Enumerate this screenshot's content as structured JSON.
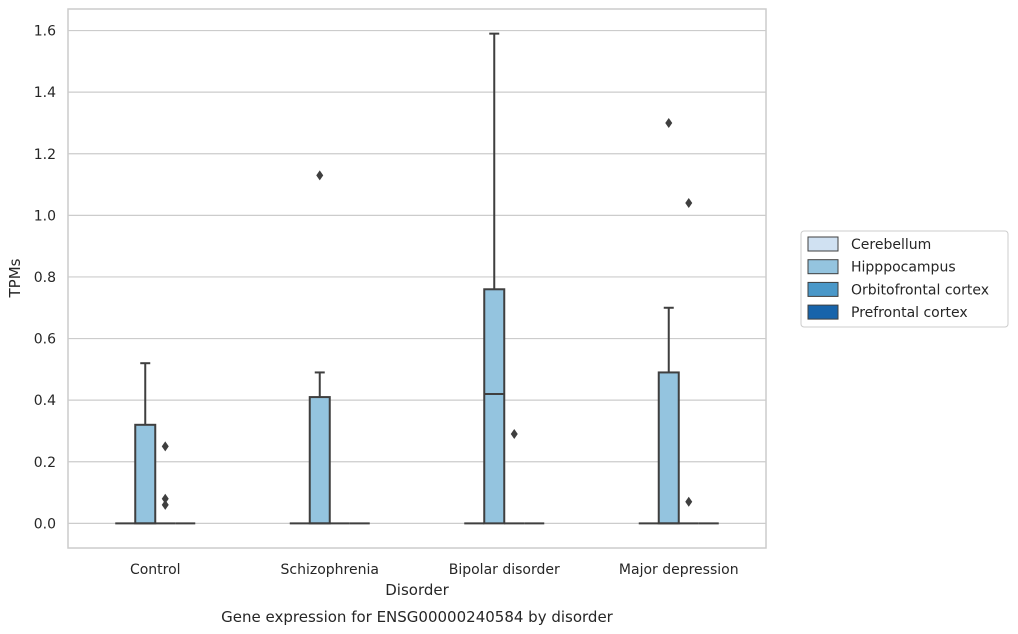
{
  "chart_data": {
    "type": "box",
    "title": "Gene expression for ENSG00000240584 by disorder",
    "xlabel": "Disorder",
    "ylabel": "TPMs",
    "ylim": [
      -0.08,
      1.67
    ],
    "yticks": [
      0.0,
      0.2,
      0.4,
      0.6,
      0.8,
      1.0,
      1.2,
      1.4,
      1.6
    ],
    "ytick_labels": [
      "0.0",
      "0.2",
      "0.4",
      "0.6",
      "0.8",
      "1.0",
      "1.2",
      "1.4",
      "1.6"
    ],
    "categories": [
      "Control",
      "Schizophrenia",
      "Bipolar disorder",
      "Major depression"
    ],
    "grid": "horizontal",
    "legend_position": "right",
    "series": [
      {
        "name": "Cerebellum",
        "color": "#d0e1f2",
        "boxes": [
          {
            "q1": 0,
            "median": 0,
            "q3": 0,
            "whisker_low": 0,
            "whisker_high": 0,
            "outliers": []
          },
          {
            "q1": 0,
            "median": 0,
            "q3": 0,
            "whisker_low": 0,
            "whisker_high": 0,
            "outliers": []
          },
          {
            "q1": 0,
            "median": 0,
            "q3": 0,
            "whisker_low": 0,
            "whisker_high": 0,
            "outliers": []
          },
          {
            "q1": 0,
            "median": 0,
            "q3": 0,
            "whisker_low": 0,
            "whisker_high": 0,
            "outliers": []
          }
        ]
      },
      {
        "name": "Hipppocampus",
        "color": "#94c4df",
        "boxes": [
          {
            "q1": 0,
            "median": 0,
            "q3": 0.32,
            "whisker_low": 0,
            "whisker_high": 0.52,
            "outliers": []
          },
          {
            "q1": 0,
            "median": 0,
            "q3": 0.41,
            "whisker_low": 0,
            "whisker_high": 0.49,
            "outliers": [
              1.13
            ]
          },
          {
            "q1": 0,
            "median": 0.42,
            "q3": 0.76,
            "whisker_low": 0,
            "whisker_high": 1.59,
            "outliers": []
          },
          {
            "q1": 0,
            "median": 0,
            "q3": 0.49,
            "whisker_low": 0,
            "whisker_high": 0.7,
            "outliers": [
              1.3
            ]
          }
        ]
      },
      {
        "name": "Orbitofrontal cortex",
        "color": "#4a98c9",
        "boxes": [
          {
            "q1": 0,
            "median": 0,
            "q3": 0,
            "whisker_low": 0,
            "whisker_high": 0,
            "outliers": [
              0.25,
              0.08,
              0.06
            ]
          },
          {
            "q1": 0,
            "median": 0,
            "q3": 0,
            "whisker_low": 0,
            "whisker_high": 0,
            "outliers": []
          },
          {
            "q1": 0,
            "median": 0,
            "q3": 0,
            "whisker_low": 0,
            "whisker_high": 0,
            "outliers": [
              0.29
            ]
          },
          {
            "q1": 0,
            "median": 0,
            "q3": 0,
            "whisker_low": 0,
            "whisker_high": 0,
            "outliers": [
              1.04,
              0.07
            ]
          }
        ]
      },
      {
        "name": "Prefrontal cortex",
        "color": "#1764ab",
        "boxes": [
          {
            "q1": 0,
            "median": 0,
            "q3": 0,
            "whisker_low": 0,
            "whisker_high": 0,
            "outliers": []
          },
          {
            "q1": 0,
            "median": 0,
            "q3": 0,
            "whisker_low": 0,
            "whisker_high": 0,
            "outliers": []
          },
          {
            "q1": 0,
            "median": 0,
            "q3": 0,
            "whisker_low": 0,
            "whisker_high": 0,
            "outliers": []
          },
          {
            "q1": 0,
            "median": 0,
            "q3": 0,
            "whisker_low": 0,
            "whisker_high": 0,
            "outliers": []
          }
        ]
      }
    ]
  }
}
